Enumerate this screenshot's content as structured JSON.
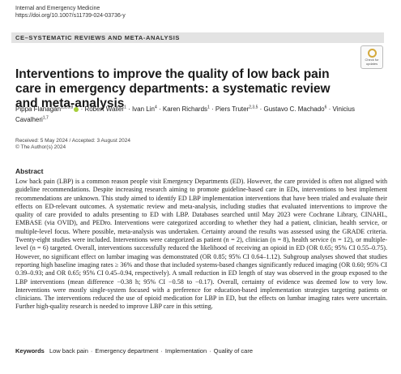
{
  "journal": {
    "name": "Internal and Emergency Medicine",
    "doi": "https://doi.org/10.1007/s11739-024-03736-y"
  },
  "section": "CE–SYSTEMATIC REVIEWS AND META-ANALYSIS",
  "update_badge": {
    "line1": "Check for",
    "line2": "updates"
  },
  "title": "Interventions to improve the quality of low back pain care in emergency departments: a systematic review and meta-analysis",
  "authors": [
    {
      "name": "Pippa Flanagan",
      "sup": "1,2,3,8",
      "orcid": true
    },
    {
      "name": "Robert Waller",
      "sup": "1",
      "orcid": false
    },
    {
      "name": "Ivan Lin",
      "sup": "4",
      "orcid": false
    },
    {
      "name": "Karen Richards",
      "sup": "1",
      "orcid": false
    },
    {
      "name": "Piers Truter",
      "sup": "2,3,5",
      "orcid": false
    },
    {
      "name": "Gustavo C. Machado",
      "sup": "6",
      "orcid": false
    },
    {
      "name": "Vinicius Cavalheri",
      "sup": "1,7",
      "orcid": false
    }
  ],
  "dates": {
    "received": "Received: 5 May 2024 / Accepted: 3 August 2024",
    "copyright": "© The Author(s) 2024"
  },
  "abstract": {
    "heading": "Abstract",
    "text": "Low back pain (LBP) is a common reason people visit Emergency Departments (ED). However, the care provided is often not aligned with guideline recommendations. Despite increasing research aiming to promote guideline-based care in EDs, interventions to best implement recommendations are unknown. This study aimed to identify ED LBP implementation interventions that have been trialed and evaluate their effects on ED-relevant outcomes. A systematic review and meta-analysis, including studies that evaluated interventions to improve the quality of care provided to adults presenting to ED with LBP. Databases searched until May 2023 were Cochrane Library, CINAHL, EMBASE (via OVID), and PEDro. Interventions were categorized according to whether they had a patient, clinician, health service, or multiple-level focus. Where possible, meta-analysis was undertaken. Certainty around the results was assessed using the GRADE criteria. Twenty-eight studies were included. Interventions were categorized as patient (n = 2), clinician (n = 8), health service (n = 12), or multiple-level (n = 6) targeted. Overall, interventions successfully reduced the likelihood of receiving an opioid in ED (OR 0.65; 95% CI 0.55–0.75). However, no significant effect on lumbar imaging was demonstrated (OR 0.85; 95% CI 0.64–1.12). Subgroup analyses showed that studies reporting high baseline imaging rates ≥ 36% and those that included systems-based changes significantly reduced imaging (OR 0.60; 95% CI 0.39–0.93; and OR 0.65; 95% CI 0.45–0.94, respectively). A small reduction in ED length of stay was observed in the group exposed to the LBP interventions (mean difference −0.38 h; 95% CI −0.58 to −0.17). Overall, certainty of evidence was deemed low to very low. Interventions were mostly single-system focused with a preference for education-based implementation strategies targeting patients or clinicians. The interventions reduced the use of opioid medication for LBP in ED, but the effects on lumbar imaging rates were uncertain. Further high-quality research is needed to improve LBP care in this setting."
  },
  "keywords": {
    "label": "Keywords",
    "items": [
      "Low back pain",
      "Emergency department",
      "Implementation",
      "Quality of care"
    ],
    "separator": "·"
  }
}
